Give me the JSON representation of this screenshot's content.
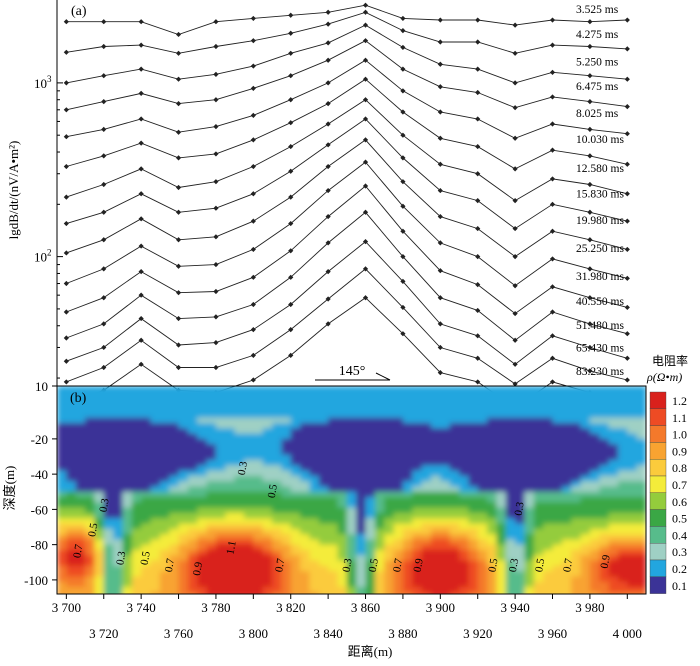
{
  "chart_data": [
    {
      "panel": "(a)",
      "type": "line",
      "ylabel": "lgdB/dt/(nV/A•m²)",
      "yscale": "log",
      "ylim": [
        18,
        3000
      ],
      "yticks": [
        {
          "value": 100,
          "label": "10",
          "exp": "2"
        },
        {
          "value": 1000,
          "label": "10",
          "exp": "3"
        }
      ],
      "x": [
        3700,
        3720,
        3740,
        3760,
        3780,
        3800,
        3820,
        3840,
        3860,
        3880,
        3900,
        3920,
        3940,
        3960,
        3980,
        4000
      ],
      "series": [
        {
          "name": "3.525 ms",
          "values": [
            2250,
            2250,
            2250,
            1900,
            2250,
            2350,
            2450,
            2550,
            2800,
            2350,
            2300,
            2300,
            2150,
            2300,
            2250,
            2300
          ]
        },
        {
          "name": "4.275 ms",
          "values": [
            1500,
            1620,
            1650,
            1480,
            1620,
            1750,
            1930,
            2180,
            2550,
            2000,
            1720,
            1720,
            1480,
            1650,
            1620,
            1570
          ]
        },
        {
          "name": "5.250 ms",
          "values": [
            1000,
            1100,
            1200,
            1050,
            1120,
            1250,
            1480,
            1700,
            2150,
            1600,
            1280,
            1200,
            1000,
            1150,
            1100,
            1050
          ]
        },
        {
          "name": "6.475 ms",
          "values": [
            700,
            780,
            870,
            760,
            800,
            930,
            1100,
            1350,
            1750,
            1200,
            950,
            880,
            720,
            830,
            780,
            730
          ]
        },
        {
          "name": "8.025 ms",
          "values": [
            490,
            540,
            620,
            520,
            560,
            650,
            800,
            1000,
            1350,
            900,
            680,
            620,
            480,
            580,
            540,
            510
          ]
        },
        {
          "name": "10.030 ms",
          "values": [
            330,
            380,
            450,
            370,
            390,
            470,
            590,
            760,
            1050,
            680,
            480,
            430,
            320,
            410,
            380,
            340
          ]
        },
        {
          "name": "12.580 ms",
          "values": [
            220,
            260,
            320,
            250,
            270,
            330,
            430,
            580,
            800,
            500,
            340,
            300,
            210,
            280,
            260,
            230
          ]
        },
        {
          "name": "15.830 ms",
          "values": [
            155,
            180,
            230,
            180,
            190,
            230,
            310,
            440,
            620,
            370,
            240,
            210,
            145,
            200,
            180,
            160
          ]
        },
        {
          "name": "19.980 ms",
          "values": [
            105,
            125,
            165,
            125,
            130,
            160,
            220,
            330,
            470,
            270,
            170,
            145,
            100,
            140,
            125,
            110
          ]
        },
        {
          "name": "25.250 ms",
          "values": [
            70,
            85,
            115,
            88,
            90,
            110,
            155,
            240,
            350,
            195,
            120,
            100,
            68,
            97,
            85,
            75
          ]
        },
        {
          "name": "31.980 ms",
          "values": [
            48,
            58,
            82,
            62,
            63,
            76,
            108,
            170,
            255,
            140,
            83,
            69,
            47,
            67,
            58,
            51
          ]
        },
        {
          "name": "40.550 ms",
          "values": [
            34,
            41,
            60,
            44,
            45,
            53,
            76,
            120,
            180,
            100,
            58,
            49,
            33,
            48,
            41,
            36
          ]
        },
        {
          "name": "51.480 ms",
          "values": [
            25,
            30,
            44,
            31,
            32,
            38,
            53,
            82,
            122,
            72,
            41,
            35,
            24,
            35,
            30,
            26
          ]
        },
        {
          "name": "65.430 ms",
          "values": [
            19,
            23,
            33,
            23,
            23,
            27,
            38,
            57,
            85,
            51,
            30,
            26,
            18.5,
            26,
            22,
            19.5
          ]
        },
        {
          "name": "83.230 ms",
          "values": [
            14,
            17,
            24,
            17,
            16.5,
            19.5,
            27,
            41,
            58,
            36,
            21.5,
            19,
            13.5,
            19,
            16.5,
            14.5
          ]
        }
      ],
      "annotations": [
        "145°"
      ]
    },
    {
      "panel": "(b)",
      "type": "heatmap",
      "xlabel": "距离(m)",
      "ylabel": "深度(m)",
      "xlim": [
        3695,
        4010
      ],
      "ylim": [
        -108,
        10
      ],
      "yticks": [
        "10",
        "-20",
        "-40",
        "-60",
        "-80",
        "-100"
      ],
      "xticks_upper": [
        "3 700",
        "3 740",
        "3 780",
        "3 820",
        "3 860",
        "3 900",
        "3 940",
        "3 980"
      ],
      "xticks_lower": [
        "3 720",
        "3 760",
        "3 800",
        "3 840",
        "3 880",
        "3 920",
        "3 960",
        "4 000"
      ],
      "contour_labels": [
        {
          "x": 3708,
          "y": -84,
          "text": "0.7"
        },
        {
          "x": 3716,
          "y": -72,
          "text": "0.5"
        },
        {
          "x": 3722,
          "y": -58,
          "text": "0.3"
        },
        {
          "x": 3731,
          "y": -88,
          "text": "0.3"
        },
        {
          "x": 3744,
          "y": -88,
          "text": "0.5"
        },
        {
          "x": 3757,
          "y": -92,
          "text": "0.7"
        },
        {
          "x": 3772,
          "y": -94,
          "text": "0.9"
        },
        {
          "x": 3790,
          "y": -82,
          "text": "1.1"
        },
        {
          "x": 3816,
          "y": -92,
          "text": "0.7"
        },
        {
          "x": 3812,
          "y": -50,
          "text": "0.5"
        },
        {
          "x": 3796,
          "y": -37,
          "text": "0.3"
        },
        {
          "x": 3852,
          "y": -92,
          "text": "0.3"
        },
        {
          "x": 3866,
          "y": -92,
          "text": "0.5"
        },
        {
          "x": 3879,
          "y": -92,
          "text": "0.7"
        },
        {
          "x": 3890,
          "y": -92,
          "text": "0.9"
        },
        {
          "x": 3930,
          "y": -92,
          "text": "0.5"
        },
        {
          "x": 3941,
          "y": -92,
          "text": "0.3"
        },
        {
          "x": 3944,
          "y": -60,
          "text": "0.3"
        },
        {
          "x": 3955,
          "y": -92,
          "text": "0.5"
        },
        {
          "x": 3970,
          "y": -92,
          "text": "0.7"
        },
        {
          "x": 3990,
          "y": -90,
          "text": "0.9"
        }
      ],
      "colorbar": {
        "title": "电阻率",
        "unit_label": "ρ(Ω•m)",
        "levels": [
          "1.2",
          "1.1",
          "1.0",
          "0.9",
          "0.8",
          "0.7",
          "0.6",
          "0.5",
          "0.4",
          "0.3",
          "0.2",
          "0.1"
        ],
        "colors": [
          "#d9211c",
          "#ee4b24",
          "#f4792b",
          "#f8a331",
          "#fbcb3c",
          "#f4ec3a",
          "#94cc3c",
          "#3aa745",
          "#57bc8b",
          "#9fd0c4",
          "#22a6df",
          "#3b3397"
        ]
      }
    }
  ]
}
